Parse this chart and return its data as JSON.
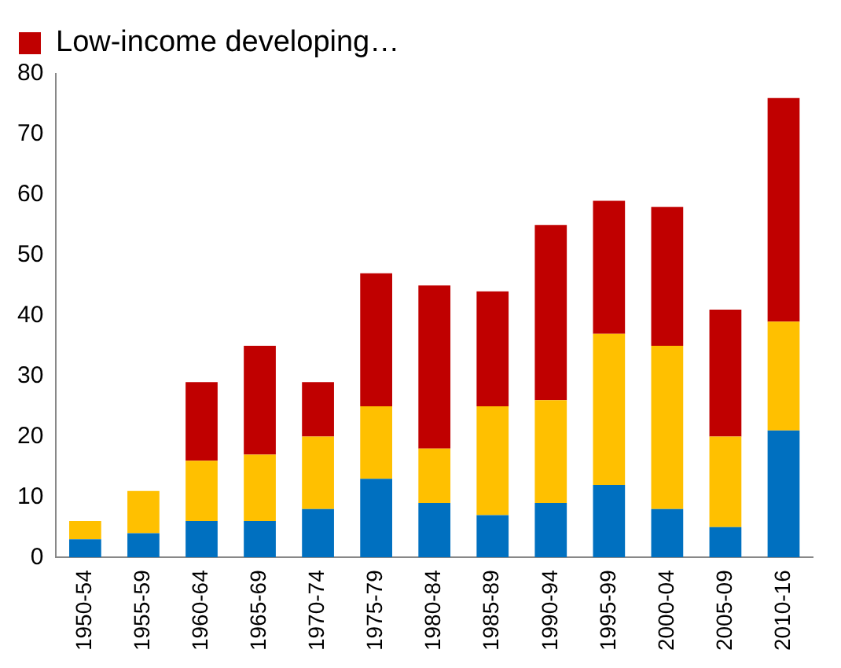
{
  "chart_data": {
    "type": "bar",
    "stacked": true,
    "categories": [
      "1950-54",
      "1955-59",
      "1960-64",
      "1965-69",
      "1970-74",
      "1975-79",
      "1980-84",
      "1985-89",
      "1990-94",
      "1995-99",
      "2000-04",
      "2005-09",
      "2010-16"
    ],
    "series": [
      {
        "color": "#0070c0",
        "values": [
          3,
          4,
          6,
          6,
          8,
          13,
          9,
          7,
          9,
          12,
          8,
          5,
          21
        ]
      },
      {
        "color": "#ffc000",
        "values": [
          3,
          7,
          10,
          11,
          12,
          12,
          9,
          18,
          17,
          25,
          27,
          15,
          18
        ]
      },
      {
        "name": "Low-income developing…",
        "color": "#c00000",
        "values": [
          0,
          0,
          13,
          18,
          9,
          22,
          27,
          19,
          29,
          22,
          23,
          21,
          37
        ]
      }
    ],
    "ylim": [
      0,
      80
    ],
    "yticks": [
      0,
      10,
      20,
      30,
      40,
      50,
      60,
      70,
      80
    ],
    "grid": false,
    "legend": "top left"
  }
}
